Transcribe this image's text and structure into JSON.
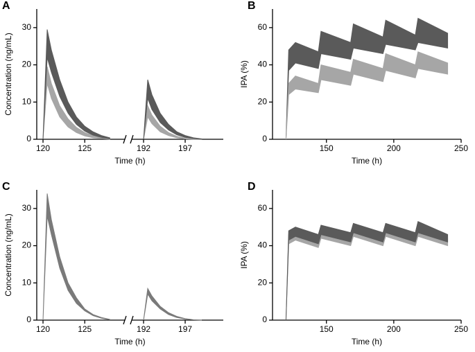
{
  "chart_data": [
    {
      "type": "band",
      "label": "A",
      "ylabel": "Concentration (ng/mL)",
      "xlabel": "Time (h)",
      "ylim": [
        0,
        35
      ],
      "yticks": [
        0,
        10,
        20,
        30
      ],
      "segments": [
        {
          "xlim": [
            119.25,
            129.8
          ],
          "xticks": [
            120,
            125
          ],
          "x": [
            120,
            120.5,
            121,
            122,
            123,
            124,
            125,
            126,
            127,
            128
          ],
          "series": [
            {
              "color": "#a6a6a6",
              "upper": [
                0,
                19.5,
                15,
                9,
                5.5,
                3.2,
                1.8,
                1,
                0.5,
                0.2
              ],
              "lower": [
                0,
                15,
                11,
                6,
                3.3,
                1.8,
                0.9,
                0.4,
                0.2,
                0
              ]
            },
            {
              "color": "#5a5a5a",
              "upper": [
                0,
                29.5,
                24,
                16,
                10,
                6,
                3.5,
                2,
                1,
                0.4
              ],
              "lower": [
                0,
                22,
                18,
                11.5,
                7,
                4,
                2.2,
                1.1,
                0.5,
                0.1
              ]
            }
          ]
        },
        {
          "xlim": [
            190.58,
            201.58
          ],
          "xticks": [
            192,
            197
          ],
          "x": [
            192,
            192.5,
            193,
            194,
            195,
            196,
            197,
            198,
            199
          ],
          "series": [
            {
              "color": "#a6a6a6",
              "upper": [
                0,
                9,
                6.5,
                3.5,
                1.8,
                0.8,
                0.3,
                0.1,
                0
              ],
              "lower": [
                0,
                6,
                4.2,
                2,
                1,
                0.4,
                0.1,
                0,
                0
              ]
            },
            {
              "color": "#5a5a5a",
              "upper": [
                0,
                16,
                12,
                7,
                4,
                2,
                1,
                0.4,
                0.1
              ],
              "lower": [
                0,
                11,
                8,
                4.5,
                2.5,
                1.2,
                0.5,
                0.2,
                0
              ]
            }
          ]
        }
      ]
    },
    {
      "type": "band",
      "label": "B",
      "ylabel": "IPA (%)",
      "xlabel": "Time (h)",
      "ylim": [
        0,
        70
      ],
      "yticks": [
        0,
        20,
        40,
        60
      ],
      "xlim": [
        110,
        250
      ],
      "xticks": [
        150,
        200,
        250
      ],
      "x": [
        120,
        122,
        127,
        144,
        146,
        168,
        170,
        192,
        194,
        216,
        218,
        240
      ],
      "series": [
        {
          "color": "#5a5a5a",
          "upper": [
            0,
            48,
            52,
            47,
            58,
            52,
            62,
            55,
            64,
            56,
            65,
            57
          ],
          "lower": [
            0,
            37,
            41,
            38,
            46,
            43,
            49,
            46,
            51,
            48,
            52,
            49
          ]
        },
        {
          "color": "#a6a6a6",
          "upper": [
            0,
            30,
            34,
            30,
            40,
            36,
            43,
            38,
            46,
            40,
            47,
            41
          ],
          "lower": [
            0,
            24,
            27,
            25,
            32,
            29,
            35,
            31,
            37,
            33,
            38,
            35
          ]
        }
      ]
    },
    {
      "type": "band",
      "label": "C",
      "ylabel": "Concentration (ng/mL)",
      "xlabel": "Time (h)",
      "ylim": [
        0,
        35
      ],
      "yticks": [
        0,
        10,
        20,
        30
      ],
      "segments": [
        {
          "xlim": [
            119.25,
            129.8
          ],
          "xticks": [
            120,
            125
          ],
          "x": [
            120,
            120.5,
            121,
            122,
            123,
            124,
            125,
            126,
            127,
            128
          ],
          "series": [
            {
              "color": "#7a7a7a",
              "upper": [
                0,
                34,
                27,
                17,
                10,
                6,
                3,
                1.5,
                0.7,
                0.2
              ],
              "lower": [
                0,
                28,
                23,
                14,
                8,
                4.5,
                2.5,
                1.2,
                0.5,
                0.1
              ]
            }
          ]
        },
        {
          "xlim": [
            190.58,
            201.58
          ],
          "xticks": [
            192,
            197
          ],
          "x": [
            192,
            192.5,
            193,
            194,
            195,
            196,
            197,
            198,
            199
          ],
          "series": [
            {
              "color": "#7a7a7a",
              "upper": [
                0,
                8.5,
                6.5,
                3.7,
                2,
                1,
                0.4,
                0.1,
                0
              ],
              "lower": [
                0,
                7,
                5.2,
                3,
                1.5,
                0.7,
                0.3,
                0.1,
                0
              ]
            }
          ]
        }
      ]
    },
    {
      "type": "band",
      "label": "D",
      "ylabel": "IPA (%)",
      "xlabel": "Time (h)",
      "ylim": [
        0,
        70
      ],
      "yticks": [
        0,
        20,
        40,
        60
      ],
      "xlim": [
        110,
        250
      ],
      "xticks": [
        150,
        200,
        250
      ],
      "x": [
        120,
        122,
        127,
        144,
        146,
        168,
        170,
        192,
        194,
        216,
        218,
        240
      ],
      "series": [
        {
          "color": "#a6a6a6",
          "upper": [
            0,
            46,
            48,
            44,
            49,
            45,
            50,
            45,
            50,
            45,
            51,
            44
          ],
          "lower": [
            0,
            41,
            43,
            39,
            44,
            40,
            45,
            40,
            45,
            40,
            45,
            40
          ]
        },
        {
          "color": "#5a5a5a",
          "upper": [
            0,
            48,
            50,
            46,
            51,
            47,
            52,
            47,
            52,
            47,
            53,
            46
          ],
          "lower": [
            0,
            43,
            45,
            41,
            46,
            42,
            47,
            42,
            47,
            42,
            47,
            42
          ]
        }
      ]
    }
  ]
}
